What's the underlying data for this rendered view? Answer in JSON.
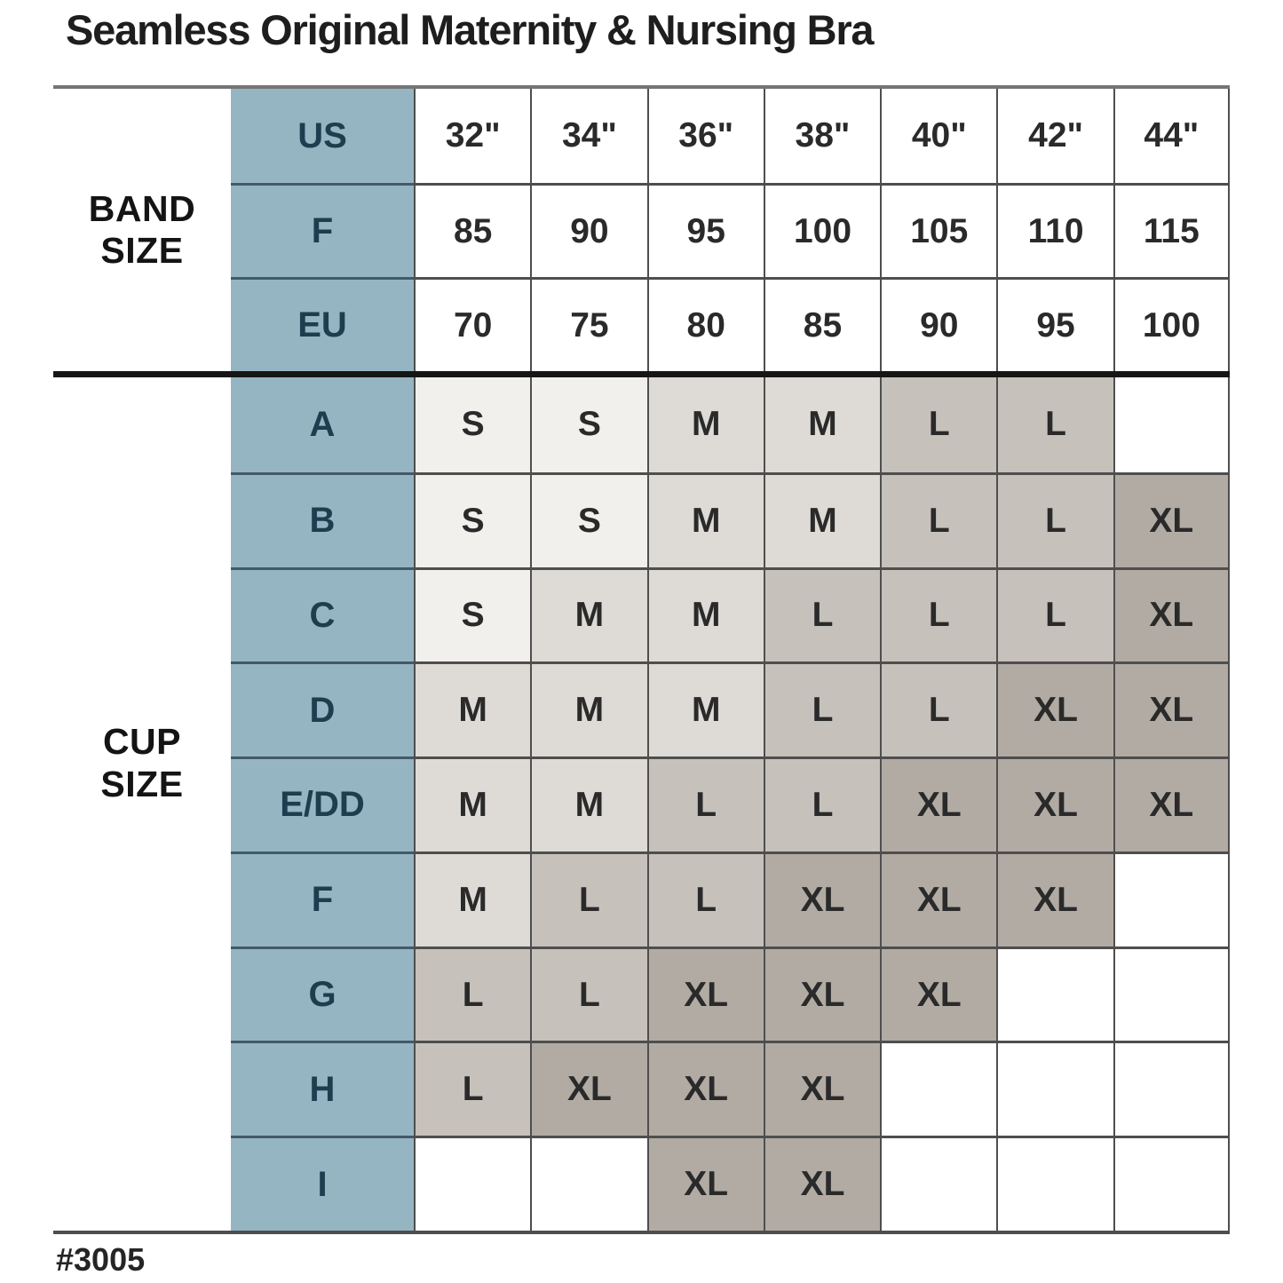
{
  "footnote": "#3005",
  "group_labels": {
    "band": [
      "BAND",
      "SIZE"
    ],
    "cup": [
      "CUP",
      "SIZE"
    ]
  },
  "chart_data": {
    "type": "table",
    "title": "Seamless Original Maternity & Nursing Bra",
    "column_headers_us": [
      "32\"",
      "34\"",
      "36\"",
      "38\"",
      "40\"",
      "42\"",
      "44\""
    ],
    "band_size_rows": [
      {
        "system": "US",
        "values": [
          "32\"",
          "34\"",
          "36\"",
          "38\"",
          "40\"",
          "42\"",
          "44\""
        ]
      },
      {
        "system": "F",
        "values": [
          "85",
          "90",
          "95",
          "100",
          "105",
          "110",
          "115"
        ]
      },
      {
        "system": "EU",
        "values": [
          "70",
          "75",
          "80",
          "85",
          "90",
          "95",
          "100"
        ]
      }
    ],
    "cup_size_rows": [
      {
        "cup": "A",
        "values": [
          "S",
          "S",
          "M",
          "M",
          "L",
          "L",
          ""
        ]
      },
      {
        "cup": "B",
        "values": [
          "S",
          "S",
          "M",
          "M",
          "L",
          "L",
          "XL"
        ]
      },
      {
        "cup": "C",
        "values": [
          "S",
          "M",
          "M",
          "L",
          "L",
          "L",
          "XL"
        ]
      },
      {
        "cup": "D",
        "values": [
          "M",
          "M",
          "M",
          "L",
          "L",
          "XL",
          "XL"
        ]
      },
      {
        "cup": "E/DD",
        "values": [
          "M",
          "M",
          "L",
          "L",
          "XL",
          "XL",
          "XL"
        ]
      },
      {
        "cup": "F",
        "values": [
          "M",
          "L",
          "L",
          "XL",
          "XL",
          "XL",
          ""
        ]
      },
      {
        "cup": "G",
        "values": [
          "L",
          "L",
          "XL",
          "XL",
          "XL",
          "",
          ""
        ]
      },
      {
        "cup": "H",
        "values": [
          "L",
          "XL",
          "XL",
          "XL",
          "",
          "",
          ""
        ]
      },
      {
        "cup": "I",
        "values": [
          "",
          "",
          "XL",
          "XL",
          "",
          "",
          ""
        ]
      }
    ],
    "size_color_map": {
      "S": "#f2f0ed",
      "M": "#dedbd6",
      "L": "#c7c1bb",
      "XL": "#b2aba4",
      "": "#ffffff"
    },
    "accent": {
      "header_column_bg": "#95b5c2",
      "header_column_text": "#1e3d4f"
    }
  }
}
